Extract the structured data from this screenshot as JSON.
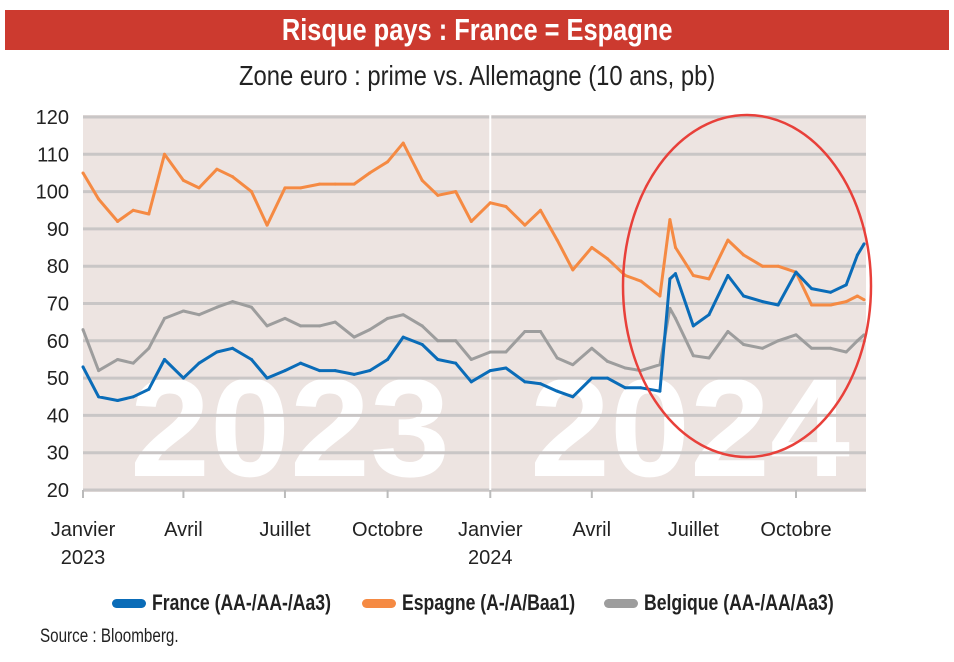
{
  "header": {
    "title": "Risque pays : France = Espagne"
  },
  "chart_data": {
    "type": "line",
    "title": "Risque pays : France = Espagne",
    "subtitle": "Zone euro : prime vs. Allemagne (10 ans, pb)",
    "xlabel": "",
    "ylabel": "",
    "ylim": [
      20,
      120
    ],
    "y_ticks": [
      "20",
      "30",
      "40",
      "50",
      "60",
      "70",
      "80",
      "90",
      "100",
      "110",
      "120"
    ],
    "x_ticks": [
      {
        "date": "2023-01-01",
        "label": "Janvier",
        "label2": "2023"
      },
      {
        "date": "2023-04-01",
        "label": "Avril",
        "label2": ""
      },
      {
        "date": "2023-07-01",
        "label": "Juillet",
        "label2": ""
      },
      {
        "date": "2023-10-01",
        "label": "Octobre",
        "label2": ""
      },
      {
        "date": "2024-01-01",
        "label": "Janvier",
        "label2": "2024"
      },
      {
        "date": "2024-04-01",
        "label": "Avril",
        "label2": ""
      },
      {
        "date": "2024-07-01",
        "label": "Juillet",
        "label2": ""
      },
      {
        "date": "2024-10-01",
        "label": "Octobre",
        "label2": ""
      }
    ],
    "grid": true,
    "legend_placement": "bottom",
    "watermarks": [
      "2023",
      "2024"
    ],
    "annotation": "red ellipse highlighting June–December 2024",
    "x": [
      "2023-01-01",
      "2023-01-15",
      "2023-02-01",
      "2023-02-15",
      "2023-03-01",
      "2023-03-15",
      "2023-04-01",
      "2023-04-15",
      "2023-05-01",
      "2023-05-15",
      "2023-06-01",
      "2023-06-15",
      "2023-07-01",
      "2023-07-15",
      "2023-08-01",
      "2023-08-15",
      "2023-09-01",
      "2023-09-15",
      "2023-10-01",
      "2023-10-15",
      "2023-11-01",
      "2023-11-15",
      "2023-12-01",
      "2023-12-15",
      "2024-01-01",
      "2024-01-15",
      "2024-02-01",
      "2024-02-15",
      "2024-03-01",
      "2024-03-15",
      "2024-04-01",
      "2024-04-15",
      "2024-05-01",
      "2024-05-15",
      "2024-06-01",
      "2024-06-10",
      "2024-06-15",
      "2024-07-01",
      "2024-07-15",
      "2024-08-01",
      "2024-08-15",
      "2024-09-01",
      "2024-09-15",
      "2024-10-01",
      "2024-10-15",
      "2024-11-01",
      "2024-11-15",
      "2024-11-25",
      "2024-12-01"
    ],
    "series": [
      {
        "name": "Belgique (AA-/AA/Aa3)",
        "color": "#9d9d9d",
        "values": [
          63,
          52,
          55,
          54,
          58,
          66,
          68,
          67,
          69,
          70.5,
          69,
          64,
          66,
          64,
          64,
          65,
          61,
          63,
          66,
          67,
          64,
          60,
          60,
          55,
          57,
          57,
          62.5,
          62.5,
          55.4,
          53.6,
          58,
          54.5,
          52.7,
          52,
          53.6,
          68.7,
          66,
          56,
          55.4,
          62.5,
          59,
          58,
          60,
          61.6,
          58,
          58,
          57,
          60,
          61.6
        ]
      },
      {
        "name": "Espagne (A-/A/Baa1)",
        "color": "#f58a43",
        "values": [
          105,
          98,
          92,
          95,
          94,
          110,
          103,
          101,
          106,
          104,
          100,
          91,
          101,
          101,
          102,
          102,
          102,
          105,
          108,
          113,
          103,
          99,
          100,
          92,
          97,
          96,
          91,
          95,
          87,
          79,
          85,
          82,
          77.5,
          76,
          72,
          92.5,
          85,
          77.5,
          76.6,
          87,
          83,
          80,
          80,
          78.4,
          69.6,
          69.6,
          70.5,
          72,
          71
        ]
      },
      {
        "name": "France (AA-/AA-/Aa3)",
        "color": "#0a6cb8",
        "values": [
          53,
          45,
          44,
          45,
          47,
          55,
          50,
          54,
          57,
          58,
          55,
          50,
          52,
          54,
          52,
          52,
          51,
          52,
          55,
          61,
          59,
          55,
          54,
          49,
          52,
          52.7,
          49,
          48.5,
          46.5,
          45,
          50,
          50,
          47.4,
          47.4,
          46.5,
          76.6,
          78,
          64,
          67,
          77.5,
          72,
          70.5,
          69.6,
          78.4,
          74,
          73,
          75,
          83,
          86
        ]
      }
    ]
  },
  "legend": [
    {
      "label": "France (AA-/AA-/Aa3)",
      "color": "#0a6cb8"
    },
    {
      "label": "Espagne (A-/A/Baa1)",
      "color": "#f58a43"
    },
    {
      "label": "Belgique (AA-/AA/Aa3)",
      "color": "#9d9d9d"
    }
  ],
  "footer": {
    "source": "Source : Bloomberg."
  },
  "colors": {
    "title_bar": "#cc3a2f",
    "plot_bg": "#ede4e1",
    "annotation": "#e8403a"
  }
}
